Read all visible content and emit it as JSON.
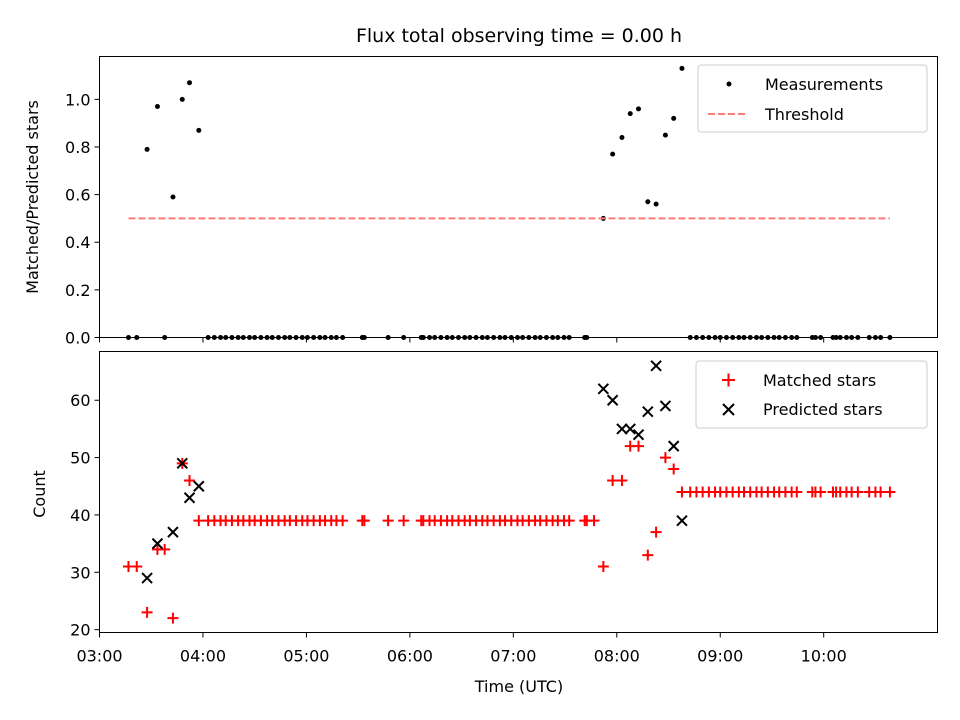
{
  "chart_data": [
    {
      "type": "scatter",
      "title": "Flux total observing time = 0.00 h",
      "xlabel": "",
      "ylabel": "Matched/Predicted stars",
      "xlim": [
        3.0,
        11.1
      ],
      "ylim": [
        0.0,
        1.18
      ],
      "yticks": [
        0.0,
        0.2,
        0.4,
        0.6,
        0.8,
        1.0
      ],
      "ytick_labels": [
        "0.0",
        "0.2",
        "0.4",
        "0.6",
        "0.8",
        "1.0"
      ],
      "legend": {
        "placement": "top-right",
        "entries": [
          "Measurements",
          "Threshold"
        ]
      },
      "series": [
        {
          "name": "Measurements",
          "marker": "dot",
          "color": "#000000",
          "x": [
            3.28,
            3.36,
            3.46,
            3.56,
            3.63,
            3.71,
            3.8,
            3.87,
            3.96,
            4.05,
            4.11,
            4.17,
            4.22,
            4.28,
            4.34,
            4.39,
            4.45,
            4.5,
            4.56,
            4.62,
            4.67,
            4.73,
            4.79,
            4.84,
            4.9,
            4.96,
            5.01,
            5.07,
            5.13,
            5.18,
            5.24,
            5.29,
            5.35,
            5.54,
            5.56,
            5.79,
            5.94,
            6.11,
            6.13,
            6.19,
            6.24,
            6.3,
            6.36,
            6.41,
            6.47,
            6.53,
            6.58,
            6.64,
            6.7,
            6.75,
            6.81,
            6.87,
            6.92,
            6.98,
            7.04,
            7.09,
            7.15,
            7.21,
            7.26,
            7.32,
            7.38,
            7.43,
            7.49,
            7.54,
            7.69,
            7.71,
            7.87,
            7.96,
            8.05,
            8.13,
            8.21,
            8.3,
            8.38,
            8.47,
            8.55,
            8.63,
            8.71,
            8.77,
            8.83,
            8.89,
            8.95,
            9.0,
            9.06,
            9.12,
            9.18,
            9.23,
            9.29,
            9.35,
            9.4,
            9.46,
            9.52,
            9.57,
            9.63,
            9.69,
            9.74,
            9.89,
            9.92,
            9.97,
            10.09,
            10.12,
            10.16,
            10.22,
            10.27,
            10.33,
            10.44,
            10.5,
            10.55,
            10.64
          ],
          "y": [
            0,
            0,
            0.79,
            0.97,
            0,
            0.59,
            1.0,
            1.07,
            0.87,
            0,
            0,
            0,
            0,
            0,
            0,
            0,
            0,
            0,
            0,
            0,
            0,
            0,
            0,
            0,
            0,
            0,
            0,
            0,
            0,
            0,
            0,
            0,
            0,
            0,
            0,
            0,
            0,
            0,
            0,
            0,
            0,
            0,
            0,
            0,
            0,
            0,
            0,
            0,
            0,
            0,
            0,
            0,
            0,
            0,
            0,
            0,
            0,
            0,
            0,
            0,
            0,
            0,
            0,
            0,
            0,
            0,
            0.5,
            0.77,
            0.84,
            0.94,
            0.96,
            0.57,
            0.56,
            0.85,
            0.92,
            1.13,
            0,
            0,
            0,
            0,
            0,
            0,
            0,
            0,
            0,
            0,
            0,
            0,
            0,
            0,
            0,
            0,
            0,
            0,
            0,
            0,
            0,
            0,
            0,
            0,
            0,
            0,
            0,
            0,
            0,
            0,
            0,
            0
          ]
        },
        {
          "name": "Threshold",
          "line_style": "dashed",
          "color": "#ff7b7b",
          "x": [
            3.28,
            10.64
          ],
          "y": [
            0.5,
            0.5
          ]
        }
      ]
    },
    {
      "type": "scatter",
      "title": "",
      "xlabel": "Time (UTC)",
      "ylabel": "Count",
      "xlim": [
        3.0,
        11.1
      ],
      "ylim": [
        19.5,
        68.5
      ],
      "yticks": [
        20,
        30,
        40,
        50,
        60
      ],
      "ytick_labels": [
        "20",
        "30",
        "40",
        "50",
        "60"
      ],
      "xticks": [
        3,
        4,
        5,
        6,
        7,
        8,
        9,
        10
      ],
      "xtick_labels": [
        "03:00",
        "04:00",
        "05:00",
        "06:00",
        "07:00",
        "08:00",
        "09:00",
        "10:00"
      ],
      "legend": {
        "placement": "top-right",
        "entries": [
          "Matched stars",
          "Predicted stars"
        ]
      },
      "series": [
        {
          "name": "Matched stars",
          "marker": "plus",
          "color": "#ff0000",
          "x": [
            3.28,
            3.36,
            3.46,
            3.56,
            3.63,
            3.71,
            3.8,
            3.87,
            3.96,
            4.05,
            4.11,
            4.17,
            4.22,
            4.28,
            4.34,
            4.39,
            4.45,
            4.5,
            4.56,
            4.62,
            4.67,
            4.73,
            4.79,
            4.84,
            4.9,
            4.96,
            5.01,
            5.07,
            5.13,
            5.18,
            5.24,
            5.29,
            5.35,
            5.54,
            5.56,
            5.79,
            5.94,
            6.11,
            6.13,
            6.19,
            6.24,
            6.3,
            6.36,
            6.41,
            6.47,
            6.53,
            6.58,
            6.64,
            6.7,
            6.75,
            6.81,
            6.87,
            6.92,
            6.98,
            7.04,
            7.09,
            7.15,
            7.21,
            7.26,
            7.32,
            7.38,
            7.43,
            7.49,
            7.54,
            7.69,
            7.71,
            7.78,
            7.87,
            7.96,
            8.05,
            8.13,
            8.21,
            8.3,
            8.38,
            8.47,
            8.55,
            8.63,
            8.71,
            8.77,
            8.83,
            8.89,
            8.95,
            9.0,
            9.06,
            9.12,
            9.18,
            9.23,
            9.29,
            9.35,
            9.4,
            9.46,
            9.52,
            9.57,
            9.63,
            9.69,
            9.74,
            9.89,
            9.92,
            9.97,
            10.09,
            10.12,
            10.16,
            10.22,
            10.27,
            10.33,
            10.44,
            10.5,
            10.55,
            10.64
          ],
          "y": [
            31,
            31,
            23,
            34,
            34,
            22,
            49,
            46,
            39,
            39,
            39,
            39,
            39,
            39,
            39,
            39,
            39,
            39,
            39,
            39,
            39,
            39,
            39,
            39,
            39,
            39,
            39,
            39,
            39,
            39,
            39,
            39,
            39,
            39,
            39,
            39,
            39,
            39,
            39,
            39,
            39,
            39,
            39,
            39,
            39,
            39,
            39,
            39,
            39,
            39,
            39,
            39,
            39,
            39,
            39,
            39,
            39,
            39,
            39,
            39,
            39,
            39,
            39,
            39,
            39,
            39,
            39,
            31,
            46,
            46,
            52,
            52,
            33,
            37,
            50,
            48,
            44,
            44,
            44,
            44,
            44,
            44,
            44,
            44,
            44,
            44,
            44,
            44,
            44,
            44,
            44,
            44,
            44,
            44,
            44,
            44,
            44,
            44,
            44,
            44,
            44,
            44,
            44,
            44,
            44,
            44,
            44,
            44,
            44
          ]
        },
        {
          "name": "Predicted stars",
          "marker": "x",
          "color": "#000000",
          "x": [
            3.46,
            3.56,
            3.71,
            3.8,
            3.87,
            3.96,
            7.87,
            7.96,
            8.05,
            8.13,
            8.21,
            8.3,
            8.38,
            8.47,
            8.55,
            8.63
          ],
          "y": [
            29,
            35,
            37,
            49,
            43,
            45,
            62,
            60,
            55,
            55,
            54,
            58,
            66,
            59,
            52,
            39
          ]
        }
      ]
    }
  ]
}
